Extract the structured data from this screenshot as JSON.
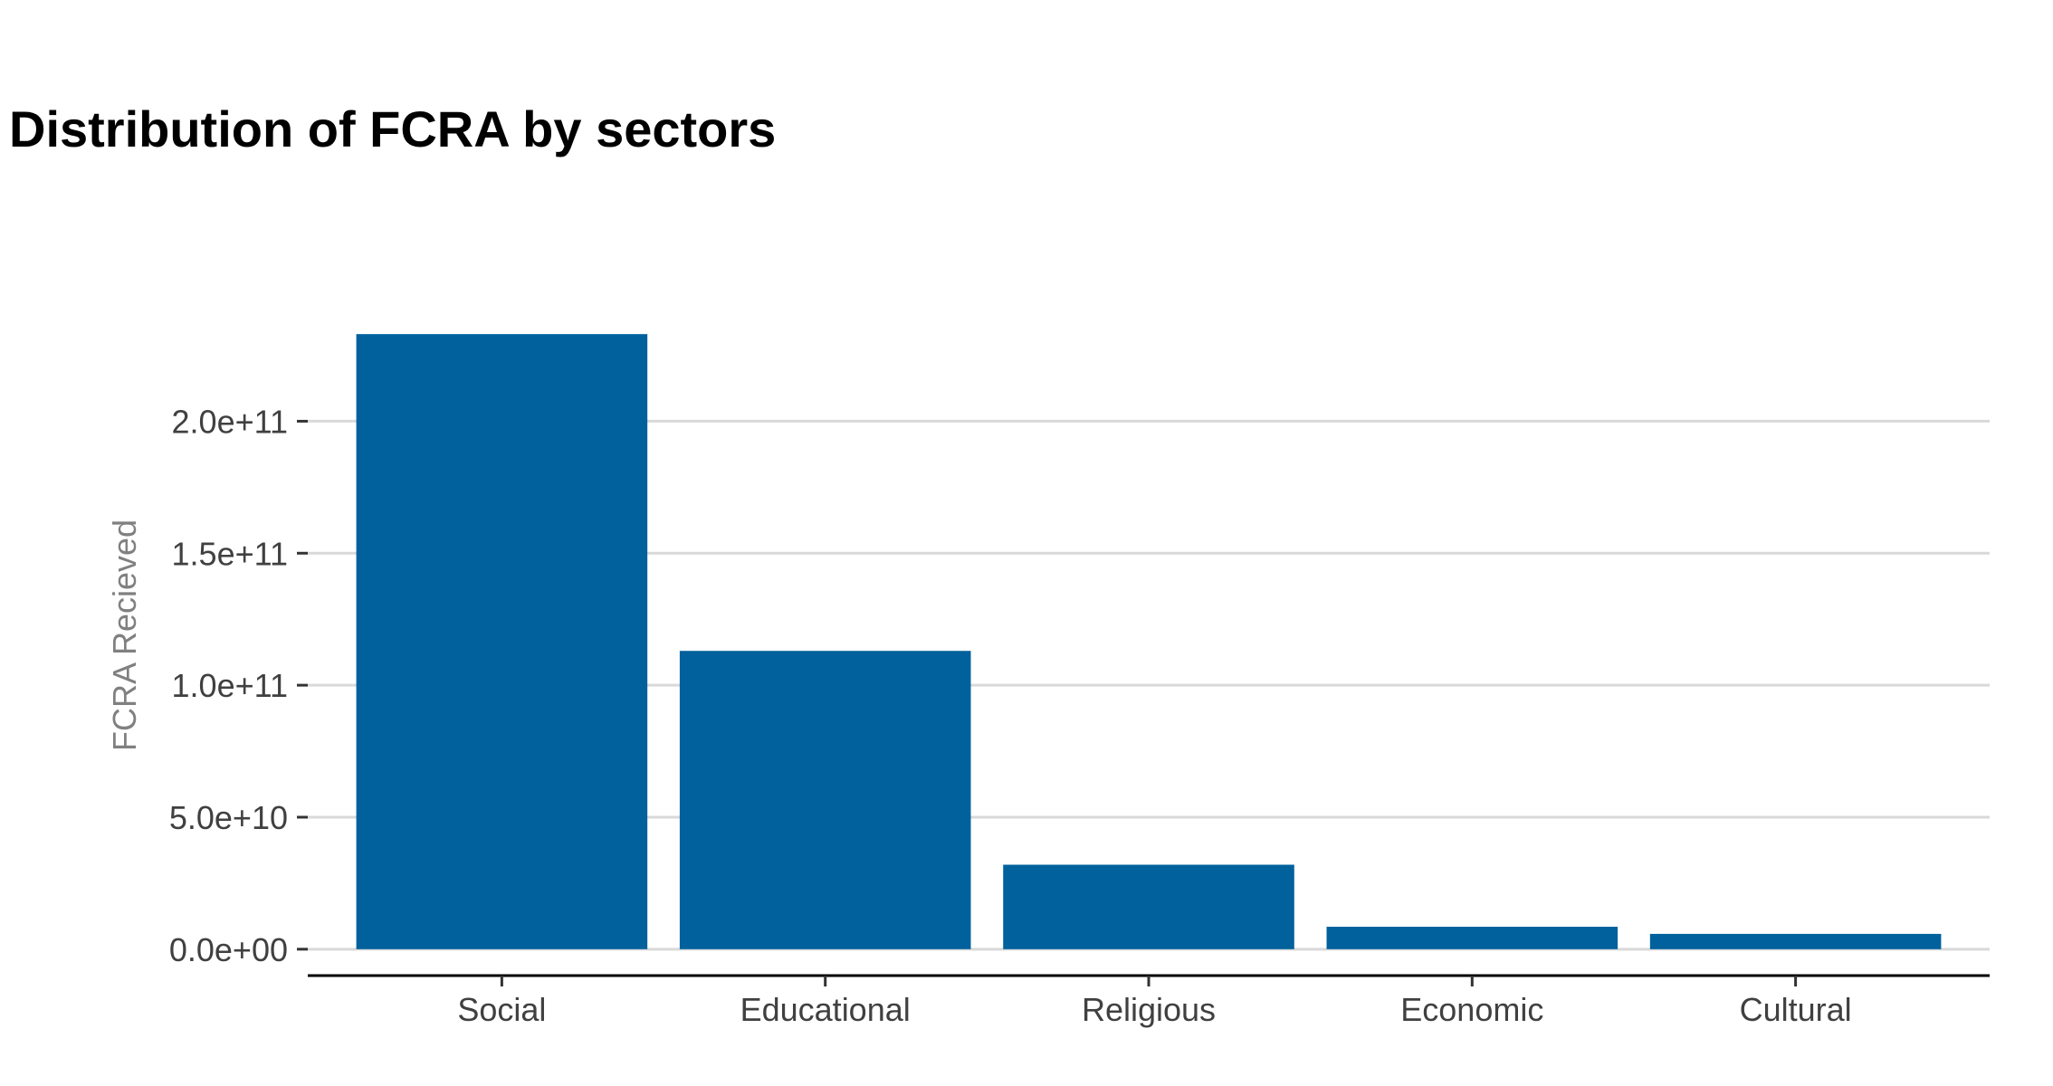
{
  "chart_data": {
    "type": "bar",
    "title": "Distribution of FCRA by sectors",
    "xlabel": "",
    "ylabel": "FCRA Recieved",
    "categories": [
      "Social",
      "Educational",
      "Religious",
      "Economic",
      "Cultural"
    ],
    "values": [
      233000000000,
      113000000000,
      32000000000,
      8500000000,
      5800000000
    ],
    "ylim": [
      -10000000000,
      243000000000
    ],
    "yticks": [
      0,
      50000000000,
      100000000000,
      150000000000,
      200000000000
    ],
    "ytick_labels": [
      "0.0e+00",
      "5.0e+10",
      "1.0e+11",
      "1.5e+11",
      "2.0e+11"
    ],
    "grid": true,
    "legend": "none",
    "colors": {
      "bar": "#00619C",
      "grid": "#D9D9D9",
      "axis": "#000000",
      "tick_text": "#404040",
      "axis_title": "#808080",
      "title": "#000000"
    }
  }
}
